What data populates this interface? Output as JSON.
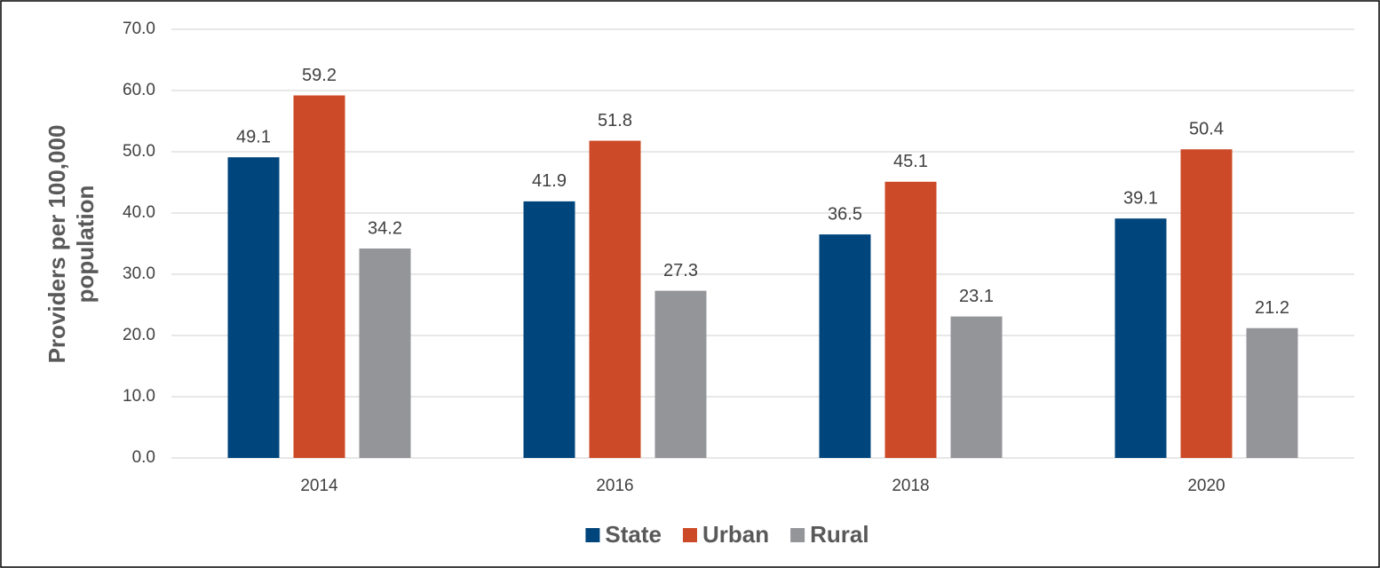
{
  "chart_data": {
    "type": "bar",
    "ylabel": [
      "Providers per 100,000",
      "population"
    ],
    "categories": [
      "2014",
      "2016",
      "2018",
      "2020"
    ],
    "series": [
      {
        "name": "State",
        "color": "#00457c",
        "values": [
          49.1,
          41.9,
          36.5,
          39.1
        ]
      },
      {
        "name": "Urban",
        "color": "#cc4a27",
        "values": [
          59.2,
          51.8,
          45.1,
          50.4
        ]
      },
      {
        "name": "Rural",
        "color": "#939598",
        "values": [
          34.2,
          27.3,
          23.1,
          21.2
        ]
      }
    ],
    "ylim": [
      0,
      70
    ],
    "yticks": [
      {
        "value": 0,
        "label": "0.0"
      },
      {
        "value": 10,
        "label": "10.0"
      },
      {
        "value": 20,
        "label": "20.0"
      },
      {
        "value": 30,
        "label": "30.0"
      },
      {
        "value": 40,
        "label": "40.0"
      },
      {
        "value": 50,
        "label": "50.0"
      },
      {
        "value": 60,
        "label": "60.0"
      },
      {
        "value": 70,
        "label": "70.0"
      }
    ],
    "grid": true,
    "legend": "bottom"
  }
}
